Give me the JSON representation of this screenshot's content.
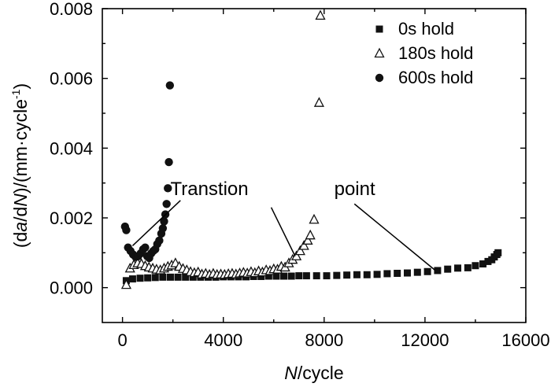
{
  "chart_data": {
    "type": "scatter",
    "xlabel_italic": "N",
    "xlabel_rest": "/cycle",
    "ylabel_parts": [
      "(d",
      "a",
      "/d",
      "N",
      ")/(mm·cycle",
      "-1",
      ")"
    ],
    "xlim": [
      -800,
      16000
    ],
    "ylim": [
      -0.001,
      0.008
    ],
    "xticks": [
      0,
      4000,
      8000,
      12000,
      16000
    ],
    "xtick_labels": [
      "0",
      "4000",
      "8000",
      "12000",
      "16000"
    ],
    "yticks": [
      0,
      0.002,
      0.004,
      0.006,
      0.008
    ],
    "ytick_labels": [
      "0.000",
      "0.002",
      "0.004",
      "0.006",
      "0.008"
    ],
    "grid": false,
    "legend_position": "top-right",
    "series": [
      {
        "name": "0s hold",
        "marker": "square",
        "points": [
          [
            150,
            0.0002
          ],
          [
            400,
            0.00025
          ],
          [
            700,
            0.00027
          ],
          [
            1000,
            0.00028
          ],
          [
            1300,
            0.00029
          ],
          [
            1600,
            0.0003
          ],
          [
            1900,
            0.0003
          ],
          [
            2200,
            0.0003
          ],
          [
            2500,
            0.0003
          ],
          [
            2800,
            0.0003
          ],
          [
            3100,
            0.0003
          ],
          [
            3400,
            0.0003
          ],
          [
            3700,
            0.0003
          ],
          [
            4000,
            0.00031
          ],
          [
            4300,
            0.00031
          ],
          [
            4600,
            0.00031
          ],
          [
            4900,
            0.00031
          ],
          [
            5200,
            0.00032
          ],
          [
            5500,
            0.00032
          ],
          [
            5800,
            0.00033
          ],
          [
            6100,
            0.00033
          ],
          [
            6400,
            0.00033
          ],
          [
            6700,
            0.00033
          ],
          [
            7000,
            0.00034
          ],
          [
            7300,
            0.00034
          ],
          [
            7700,
            0.00034
          ],
          [
            8100,
            0.00034
          ],
          [
            8500,
            0.00035
          ],
          [
            8900,
            0.00036
          ],
          [
            9300,
            0.00037
          ],
          [
            9700,
            0.00037
          ],
          [
            10100,
            0.00038
          ],
          [
            10500,
            0.0004
          ],
          [
            10900,
            0.00041
          ],
          [
            11300,
            0.00042
          ],
          [
            11700,
            0.00044
          ],
          [
            12100,
            0.00046
          ],
          [
            12500,
            0.00049
          ],
          [
            12900,
            0.00053
          ],
          [
            13300,
            0.00056
          ],
          [
            13700,
            0.00057
          ],
          [
            14000,
            0.00063
          ],
          [
            14300,
            0.00068
          ],
          [
            14500,
            0.00075
          ],
          [
            14650,
            0.0008
          ],
          [
            14750,
            0.00088
          ],
          [
            14850,
            0.00095
          ],
          [
            14900,
            0.001
          ]
        ]
      },
      {
        "name": "180s hold",
        "marker": "triangle",
        "points": [
          [
            150,
            8e-05
          ],
          [
            300,
            0.00055
          ],
          [
            450,
            0.00065
          ],
          [
            600,
            0.0007
          ],
          [
            750,
            0.00068
          ],
          [
            900,
            0.00062
          ],
          [
            1050,
            0.00058
          ],
          [
            1200,
            0.00055
          ],
          [
            1350,
            0.00052
          ],
          [
            1500,
            0.0005
          ],
          [
            1650,
            0.00055
          ],
          [
            1800,
            0.0006
          ],
          [
            1950,
            0.00064
          ],
          [
            2100,
            0.0007
          ],
          [
            2250,
            0.0006
          ],
          [
            2400,
            0.00054
          ],
          [
            2550,
            0.0005
          ],
          [
            2700,
            0.00045
          ],
          [
            2850,
            0.00042
          ],
          [
            3000,
            0.00044
          ],
          [
            3150,
            0.00038
          ],
          [
            3300,
            0.0004
          ],
          [
            3450,
            0.00037
          ],
          [
            3600,
            0.0004
          ],
          [
            3750,
            0.00037
          ],
          [
            3900,
            0.00038
          ],
          [
            4050,
            0.00037
          ],
          [
            4200,
            0.00039
          ],
          [
            4350,
            0.0004
          ],
          [
            4500,
            0.00038
          ],
          [
            4650,
            0.00041
          ],
          [
            4800,
            0.00043
          ],
          [
            4950,
            0.00041
          ],
          [
            5100,
            0.00045
          ],
          [
            5250,
            0.00042
          ],
          [
            5400,
            0.00047
          ],
          [
            5550,
            0.00044
          ],
          [
            5700,
            0.0005
          ],
          [
            5850,
            0.00048
          ],
          [
            6000,
            0.00053
          ],
          [
            6150,
            0.00052
          ],
          [
            6300,
            0.0006
          ],
          [
            6450,
            0.00058
          ],
          [
            6600,
            0.0007
          ],
          [
            6750,
            0.0008
          ],
          [
            6900,
            0.0009
          ],
          [
            7050,
            0.00105
          ],
          [
            7200,
            0.0012
          ],
          [
            7350,
            0.00135
          ],
          [
            7450,
            0.0015
          ],
          [
            7600,
            0.00195
          ],
          [
            7800,
            0.0053
          ],
          [
            7850,
            0.0078
          ]
        ]
      },
      {
        "name": "600s hold",
        "marker": "circle",
        "points": [
          [
            100,
            0.00175
          ],
          [
            150,
            0.00165
          ],
          [
            220,
            0.00115
          ],
          [
            320,
            0.00105
          ],
          [
            420,
            0.00095
          ],
          [
            520,
            0.00088
          ],
          [
            620,
            0.0009
          ],
          [
            720,
            0.00098
          ],
          [
            820,
            0.0011
          ],
          [
            900,
            0.00115
          ],
          [
            980,
            0.0009
          ],
          [
            1060,
            0.00085
          ],
          [
            1140,
            0.00098
          ],
          [
            1220,
            0.00105
          ],
          [
            1300,
            0.0011
          ],
          [
            1380,
            0.00125
          ],
          [
            1460,
            0.00135
          ],
          [
            1540,
            0.00155
          ],
          [
            1600,
            0.0017
          ],
          [
            1650,
            0.0019
          ],
          [
            1700,
            0.0021
          ],
          [
            1750,
            0.0024
          ],
          [
            1800,
            0.00285
          ],
          [
            1840,
            0.0036
          ],
          [
            1880,
            0.0058
          ]
        ]
      }
    ],
    "annotations": [
      {
        "text": "Transtion",
        "text_x": 1900,
        "text_y": 0.00265,
        "lines": [
          [
            2300,
            0.0025,
            400,
            0.0012
          ]
        ]
      },
      {
        "text": "point",
        "text_x": 8400,
        "text_y": 0.00265,
        "lines": [
          [
            5900,
            0.0023,
            6850,
            0.0009
          ],
          [
            9200,
            0.0024,
            12400,
            0.0005
          ]
        ]
      }
    ]
  }
}
